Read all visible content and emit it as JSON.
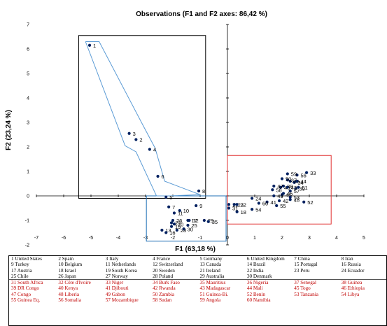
{
  "chart_data": {
    "type": "scatter",
    "title": "Observations (F1 and F2 axes: 86,42 %)",
    "xlabel": "F1 (63,18 %)",
    "ylabel": "F2 (23,24 %)",
    "xlim": [
      -7,
      5
    ],
    "ylim": [
      -2,
      7
    ],
    "xticks": [
      "-7",
      "-6",
      "-5",
      "-4",
      "-3",
      "-2",
      "-1",
      "0",
      "1",
      "2",
      "3",
      "4",
      "5"
    ],
    "yticks": [
      "-2",
      "-1",
      "0",
      "1",
      "2",
      "3",
      "4",
      "5",
      "6",
      "7"
    ],
    "grid": false,
    "colors": {
      "points": "#002060",
      "hull": "#5b9bd5",
      "box_black": "#000000",
      "box_blue": "#1f6fb5",
      "box_red": "#e03030"
    },
    "points": [
      {
        "label": "1",
        "x": -5.05,
        "y": 6.15
      },
      {
        "label": "2",
        "x": -3.35,
        "y": 2.3
      },
      {
        "label": "3",
        "x": -3.6,
        "y": 2.55
      },
      {
        "label": "4",
        "x": -2.85,
        "y": 1.9
      },
      {
        "label": "5",
        "x": -2.25,
        "y": -0.05
      },
      {
        "label": "6",
        "x": -2.55,
        "y": 0.8
      },
      {
        "label": "7",
        "x": -2.15,
        "y": -0.45
      },
      {
        "label": "8",
        "x": -1.05,
        "y": 0.2
      },
      {
        "label": "9",
        "x": -1.15,
        "y": -0.4
      },
      {
        "label": "10",
        "x": -1.75,
        "y": -0.6
      },
      {
        "label": "11",
        "x": -1.95,
        "y": -0.7
      },
      {
        "label": "12",
        "x": -1.4,
        "y": -1.0
      },
      {
        "label": "13",
        "x": -2.4,
        "y": -1.4
      },
      {
        "label": "16",
        "x": -2.25,
        "y": -1.5
      },
      {
        "label": "17",
        "x": -1.45,
        "y": -1.0
      },
      {
        "label": "19",
        "x": -2.05,
        "y": -1.25
      },
      {
        "label": "20",
        "x": -1.95,
        "y": -1.15
      },
      {
        "label": "25",
        "x": -1.45,
        "y": -1.2
      },
      {
        "label": "26",
        "x": -2.0,
        "y": -1.0
      },
      {
        "label": "27",
        "x": -2.05,
        "y": -1.1
      },
      {
        "label": "28",
        "x": -1.85,
        "y": -1.4
      },
      {
        "label": "29",
        "x": -0.85,
        "y": -1.0
      },
      {
        "label": "30",
        "x": -1.6,
        "y": -1.35
      },
      {
        "label": "35",
        "x": -0.7,
        "y": -1.05
      },
      {
        "label": "18",
        "x": 0.35,
        "y": -0.65
      },
      {
        "label": "21",
        "x": 0.05,
        "y": -0.35
      },
      {
        "label": "22",
        "x": 0.35,
        "y": -0.35
      },
      {
        "label": "23",
        "x": 0.25,
        "y": -0.35
      },
      {
        "label": "24",
        "x": 0.9,
        "y": -0.1
      },
      {
        "label": "31",
        "x": 0.05,
        "y": -0.5
      },
      {
        "label": "41",
        "x": 1.45,
        "y": -0.25
      },
      {
        "label": "42",
        "x": 1.9,
        "y": -0.2
      },
      {
        "label": "45",
        "x": 2.05,
        "y": 0.1
      },
      {
        "label": "46",
        "x": 2.0,
        "y": 0.05
      },
      {
        "label": "48",
        "x": 2.3,
        "y": -0.15
      },
      {
        "label": "49",
        "x": 1.7,
        "y": 0.0
      },
      {
        "label": "52",
        "x": 2.8,
        "y": -0.25
      },
      {
        "label": "53",
        "x": 2.3,
        "y": -0.05
      },
      {
        "label": "54",
        "x": 0.9,
        "y": -0.55
      },
      {
        "label": "55",
        "x": 1.8,
        "y": -0.4
      },
      {
        "label": "60",
        "x": 1.15,
        "y": -0.3
      },
      {
        "label": "33",
        "x": 2.9,
        "y": 0.95
      },
      {
        "label": "34",
        "x": 2.45,
        "y": 0.55
      },
      {
        "label": "36",
        "x": 2.3,
        "y": 0.6
      },
      {
        "label": "37",
        "x": 2.2,
        "y": 0.65
      },
      {
        "label": "38",
        "x": 2.05,
        "y": 0.4
      },
      {
        "label": "39",
        "x": 2.5,
        "y": 0.3
      },
      {
        "label": "40",
        "x": 1.95,
        "y": 0.35
      },
      {
        "label": "43",
        "x": 2.2,
        "y": 0.35
      },
      {
        "label": "44",
        "x": 2.55,
        "y": 0.6
      },
      {
        "label": "47",
        "x": 1.7,
        "y": 0.4
      },
      {
        "label": "50",
        "x": 2.0,
        "y": 0.7
      },
      {
        "label": "51",
        "x": 2.6,
        "y": 0.35
      },
      {
        "label": "56",
        "x": 2.55,
        "y": 0.85
      },
      {
        "label": "57",
        "x": 2.3,
        "y": 0.2
      },
      {
        "label": "58",
        "x": 1.65,
        "y": 0.25
      },
      {
        "label": "59",
        "x": 2.2,
        "y": 0.9
      }
    ]
  },
  "legend": {
    "rows": [
      [
        "1 United States",
        "2 Spain",
        "3 Italy",
        "4 France",
        "5 Germany",
        "6 United Kingdom",
        "7 China",
        "8 Iran"
      ],
      [
        "9 Turkey",
        "10 Belgium",
        "11 Netherlands",
        "12 Switzerland",
        "13 Canada",
        "14 Brazil",
        "15 Portugal",
        "16 Russia"
      ],
      [
        "17 Austria",
        "18 Israel",
        "19 South Korea",
        "20 Sweden",
        "21 Ireland",
        "22 India",
        "23 Peru",
        "24 Ecuador"
      ],
      [
        "25 Chile",
        "26 Japan",
        "27 Norway",
        "28 Poland",
        "29 Australia",
        "30 Denmark",
        "",
        ""
      ],
      [
        "31 South Africa",
        "32 Côte d'Ivoire",
        "33 Niger",
        "34 Burk Faso",
        "35 Mauritius",
        "36 Nigeria",
        "37 Senegal",
        "38 Guinea"
      ],
      [
        "39 DR Congo",
        "40 Kenya",
        "41 Djibouti",
        "42 Rwanda",
        "43 Madagascar",
        "44 Mali",
        "45 Togo",
        "46 Ethiopia"
      ],
      [
        "47 Congo",
        "48 Liberia",
        "49 Gabon",
        "50 Zambia",
        "51 Guinea-Bi.",
        "52 Benin",
        "53 Tanzania",
        "54 Libya"
      ],
      [
        "55 Guinea Eq.",
        "56 Somalia",
        "57 Mozambique",
        "58 Sudan",
        "59 Angola",
        "60 Namibia",
        "",
        ""
      ]
    ]
  }
}
